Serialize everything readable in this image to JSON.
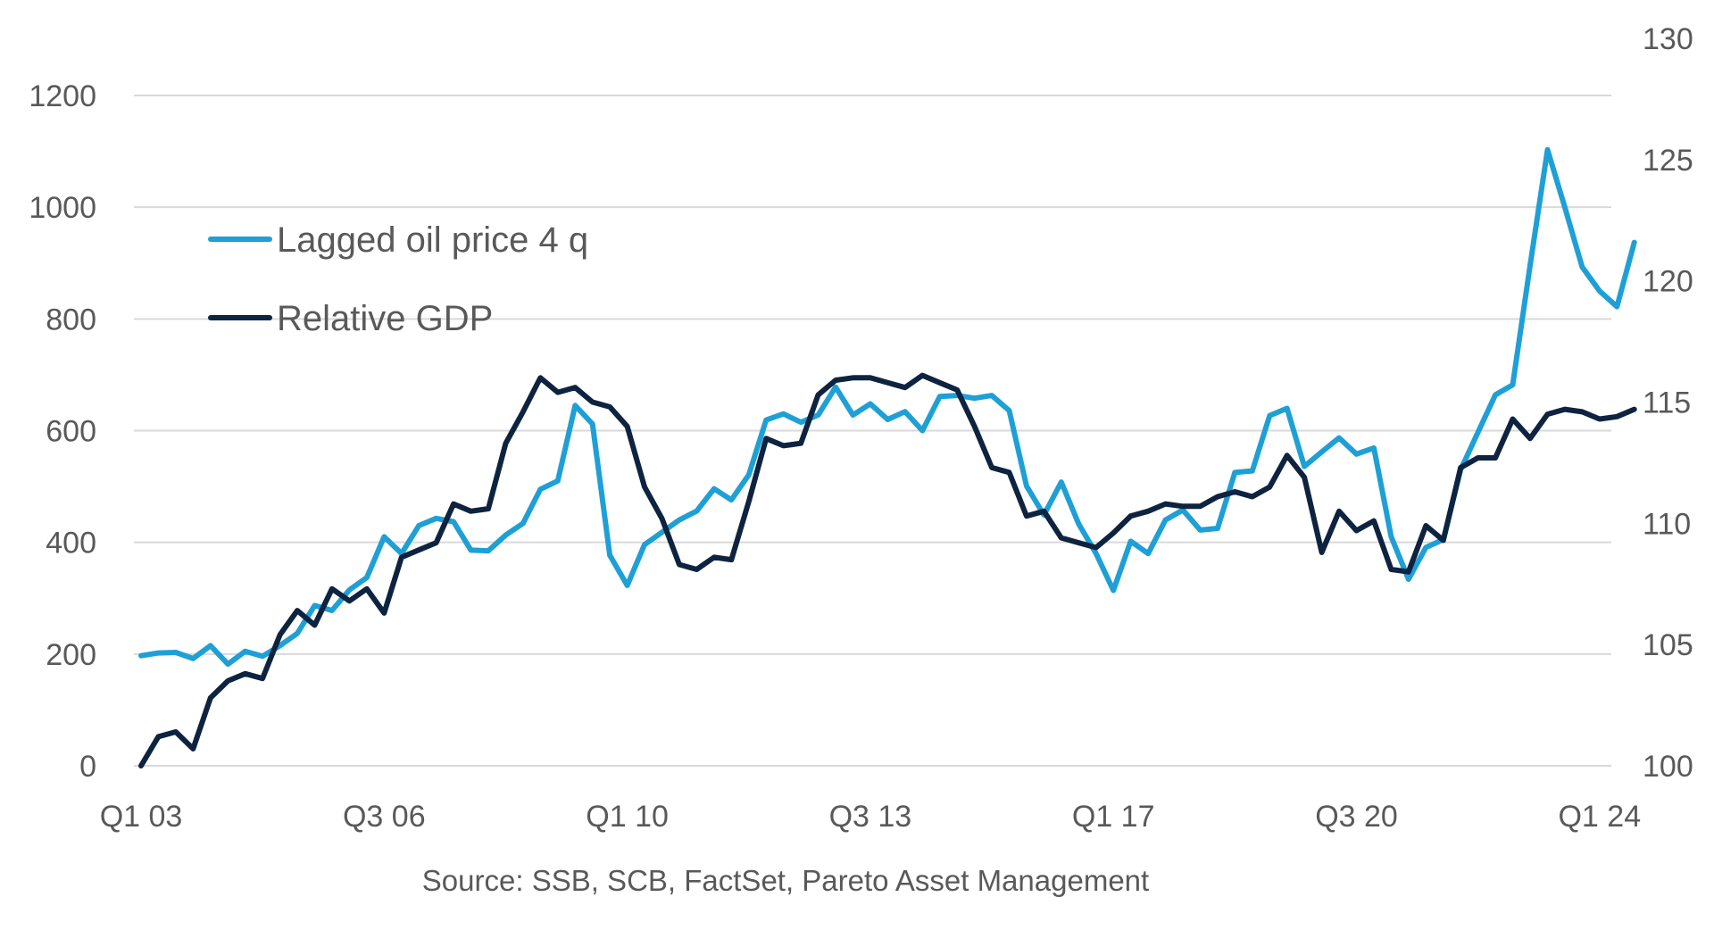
{
  "chart_data": {
    "type": "line",
    "title": "",
    "source": "Source: SSB, SCB, FactSet, Pareto Asset Management",
    "x_tick_labels": [
      "Q1 03",
      "Q3 06",
      "Q1 10",
      "Q3 13",
      "Q1 17",
      "Q3 20",
      "Q1 24"
    ],
    "x_tick_indices": [
      0,
      14,
      28,
      42,
      56,
      70,
      84
    ],
    "left_axis": {
      "ticks": [
        "0",
        "200",
        "400",
        "600",
        "800",
        "1000",
        "1200"
      ],
      "range": [
        0,
        1200
      ]
    },
    "right_axis": {
      "ticks": [
        "100",
        "105",
        "110",
        "115",
        "120",
        "125",
        "130"
      ],
      "range": [
        100,
        130
      ]
    },
    "grid": true,
    "legend_position": "top-left",
    "colors": {
      "oil": "#1ea0d6",
      "gdp": "#0d2340",
      "grid": "#d9d9d9",
      "text": "#595959"
    },
    "series": [
      {
        "name": "Lagged oil price 4 q",
        "axis": "left",
        "values": [
          197,
          202,
          203,
          192,
          215,
          182,
          205,
          196,
          215,
          237,
          287,
          278,
          315,
          337,
          410,
          380,
          430,
          443,
          437,
          386,
          385,
          413,
          434,
          495,
          510,
          645,
          612,
          377,
          323,
          396,
          418,
          440,
          456,
          496,
          476,
          521,
          619,
          630,
          615,
          628,
          678,
          628,
          648,
          620,
          634,
          600,
          661,
          663,
          658,
          663,
          636,
          501,
          449,
          508,
          433,
          380,
          314,
          402,
          380,
          440,
          458,
          422,
          425,
          525,
          528,
          627,
          640,
          536,
          562,
          587,
          558,
          569,
          410,
          334,
          391,
          405,
          530,
          597,
          664,
          682,
          896,
          1103,
          1000,
          893,
          850,
          822,
          937
        ]
      },
      {
        "name": "Relative GDP",
        "axis": "right",
        "values": [
          100.0,
          101.2,
          101.4,
          100.7,
          102.8,
          103.5,
          103.8,
          103.6,
          105.4,
          106.4,
          105.8,
          107.3,
          106.8,
          107.3,
          106.3,
          108.6,
          108.9,
          109.2,
          110.8,
          110.5,
          110.6,
          113.3,
          114.6,
          116.0,
          115.4,
          115.6,
          115.0,
          114.8,
          114.0,
          111.5,
          110.2,
          108.3,
          108.1,
          108.6,
          108.5,
          110.9,
          113.5,
          113.2,
          113.3,
          115.3,
          115.9,
          116.0,
          116.0,
          115.8,
          115.6,
          116.1,
          115.8,
          115.5,
          114.0,
          112.3,
          112.1,
          110.3,
          110.5,
          109.4,
          109.2,
          109.0,
          109.6,
          110.3,
          110.5,
          110.8,
          110.7,
          110.7,
          111.1,
          111.3,
          111.1,
          111.5,
          112.8,
          111.9,
          108.8,
          110.5,
          109.7,
          110.1,
          108.1,
          108.0,
          109.9,
          109.3,
          112.3,
          112.7,
          112.7,
          114.3,
          113.5,
          114.5,
          114.7,
          114.6,
          114.3,
          114.4,
          114.7
        ]
      }
    ]
  }
}
